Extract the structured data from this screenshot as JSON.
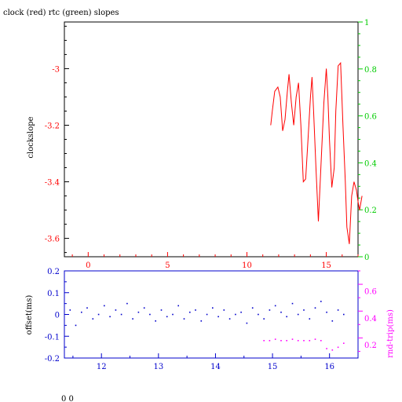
{
  "chart_data": [
    {
      "type": "line",
      "title": "clock (red) rtc (green) slopes",
      "ylabel": "clockslope",
      "xlim": [
        -1.5,
        17
      ],
      "ylim": [
        -3.665,
        -2.835
      ],
      "x_ticks": [
        "0",
        "5",
        "10",
        "15"
      ],
      "y_ticks": [
        "-3",
        "-3.2",
        "-3.4",
        "-3.6"
      ],
      "y2_ticks": [
        "0",
        "0.2",
        "0.4",
        "0.6",
        "0.8",
        "1"
      ],
      "y2lim": [
        0,
        1
      ],
      "series": [
        {
          "color": "#ff0000",
          "x": [
            11.5,
            11.6,
            11.75,
            11.95,
            12.1,
            12.25,
            12.4,
            12.55,
            12.65,
            12.8,
            12.95,
            13.1,
            13.25,
            13.4,
            13.55,
            13.7,
            13.85,
            14.0,
            14.1,
            14.2,
            14.35,
            14.5,
            14.7,
            14.85,
            15.0,
            15.1,
            15.2,
            15.35,
            15.5,
            15.6,
            15.75,
            15.9,
            16.05,
            16.2,
            16.3,
            16.45,
            16.6,
            16.75,
            16.9,
            17.0,
            17.1,
            17.25
          ],
          "y": [
            -3.2,
            -3.15,
            -3.08,
            -3.065,
            -3.1,
            -3.22,
            -3.18,
            -3.08,
            -3.02,
            -3.12,
            -3.2,
            -3.1,
            -3.05,
            -3.2,
            -3.4,
            -3.39,
            -3.25,
            -3.1,
            -3.03,
            -3.15,
            -3.35,
            -3.54,
            -3.3,
            -3.12,
            -3.0,
            -3.1,
            -3.25,
            -3.42,
            -3.35,
            -3.15,
            -2.99,
            -2.98,
            -3.2,
            -3.4,
            -3.56,
            -3.62,
            -3.45,
            -3.4,
            -3.43,
            -3.47,
            -3.5,
            -3.45
          ]
        }
      ]
    },
    {
      "type": "scatter",
      "ylabel": "offset(ms)",
      "y2label": "rnd-trip(ms)",
      "xlim": [
        11.35,
        16.5
      ],
      "ylim": [
        -0.2,
        0.2
      ],
      "y2lim": [
        0.1,
        0.75
      ],
      "x_ticks": [
        "12",
        "13",
        "14",
        "15",
        "16"
      ],
      "y_ticks": [
        "0.2",
        "0.1",
        "0",
        "-0.1",
        "-0.2"
      ],
      "y2_ticks": [
        "0.6",
        "0.4",
        "0.2"
      ],
      "series": [
        {
          "color": "#0000cc",
          "x": [
            11.45,
            11.55,
            11.65,
            11.75,
            11.85,
            11.95,
            12.05,
            12.15,
            12.25,
            12.35,
            12.45,
            12.55,
            12.65,
            12.75,
            12.85,
            12.95,
            13.05,
            13.15,
            13.25,
            13.35,
            13.45,
            13.55,
            13.65,
            13.75,
            13.85,
            13.95,
            14.05,
            14.15,
            14.25,
            14.35,
            14.45,
            14.55,
            14.65,
            14.75,
            14.85,
            14.95,
            15.05,
            15.15,
            15.25,
            15.35,
            15.45,
            15.55,
            15.65,
            15.75,
            15.85,
            15.95,
            16.05,
            16.15,
            16.25
          ],
          "y": [
            0.02,
            -0.05,
            0.01,
            0.03,
            -0.02,
            0.0,
            0.04,
            -0.01,
            0.02,
            0.0,
            0.05,
            -0.02,
            0.01,
            0.03,
            0.0,
            -0.03,
            0.02,
            -0.01,
            0.0,
            0.04,
            -0.02,
            0.01,
            0.02,
            -0.03,
            0.0,
            0.03,
            -0.01,
            0.02,
            -0.02,
            0.0,
            0.01,
            -0.04,
            0.03,
            0.0,
            -0.02,
            0.02,
            0.04,
            0.01,
            -0.01,
            0.05,
            0.0,
            0.02,
            -0.02,
            0.03,
            0.06,
            0.01,
            -0.03,
            0.02,
            0.0
          ]
        },
        {
          "color": "#ff00ff",
          "x": [
            14.85,
            14.95,
            15.05,
            15.15,
            15.25,
            15.35,
            15.45,
            15.55,
            15.65,
            15.75,
            15.85,
            15.95,
            16.05,
            16.15,
            16.25
          ],
          "y": [
            0.23,
            0.23,
            0.24,
            0.23,
            0.23,
            0.24,
            0.23,
            0.23,
            0.23,
            0.24,
            0.23,
            0.17,
            0.16,
            0.18,
            0.21
          ]
        }
      ]
    }
  ],
  "footer": {
    "text": "0 0"
  }
}
